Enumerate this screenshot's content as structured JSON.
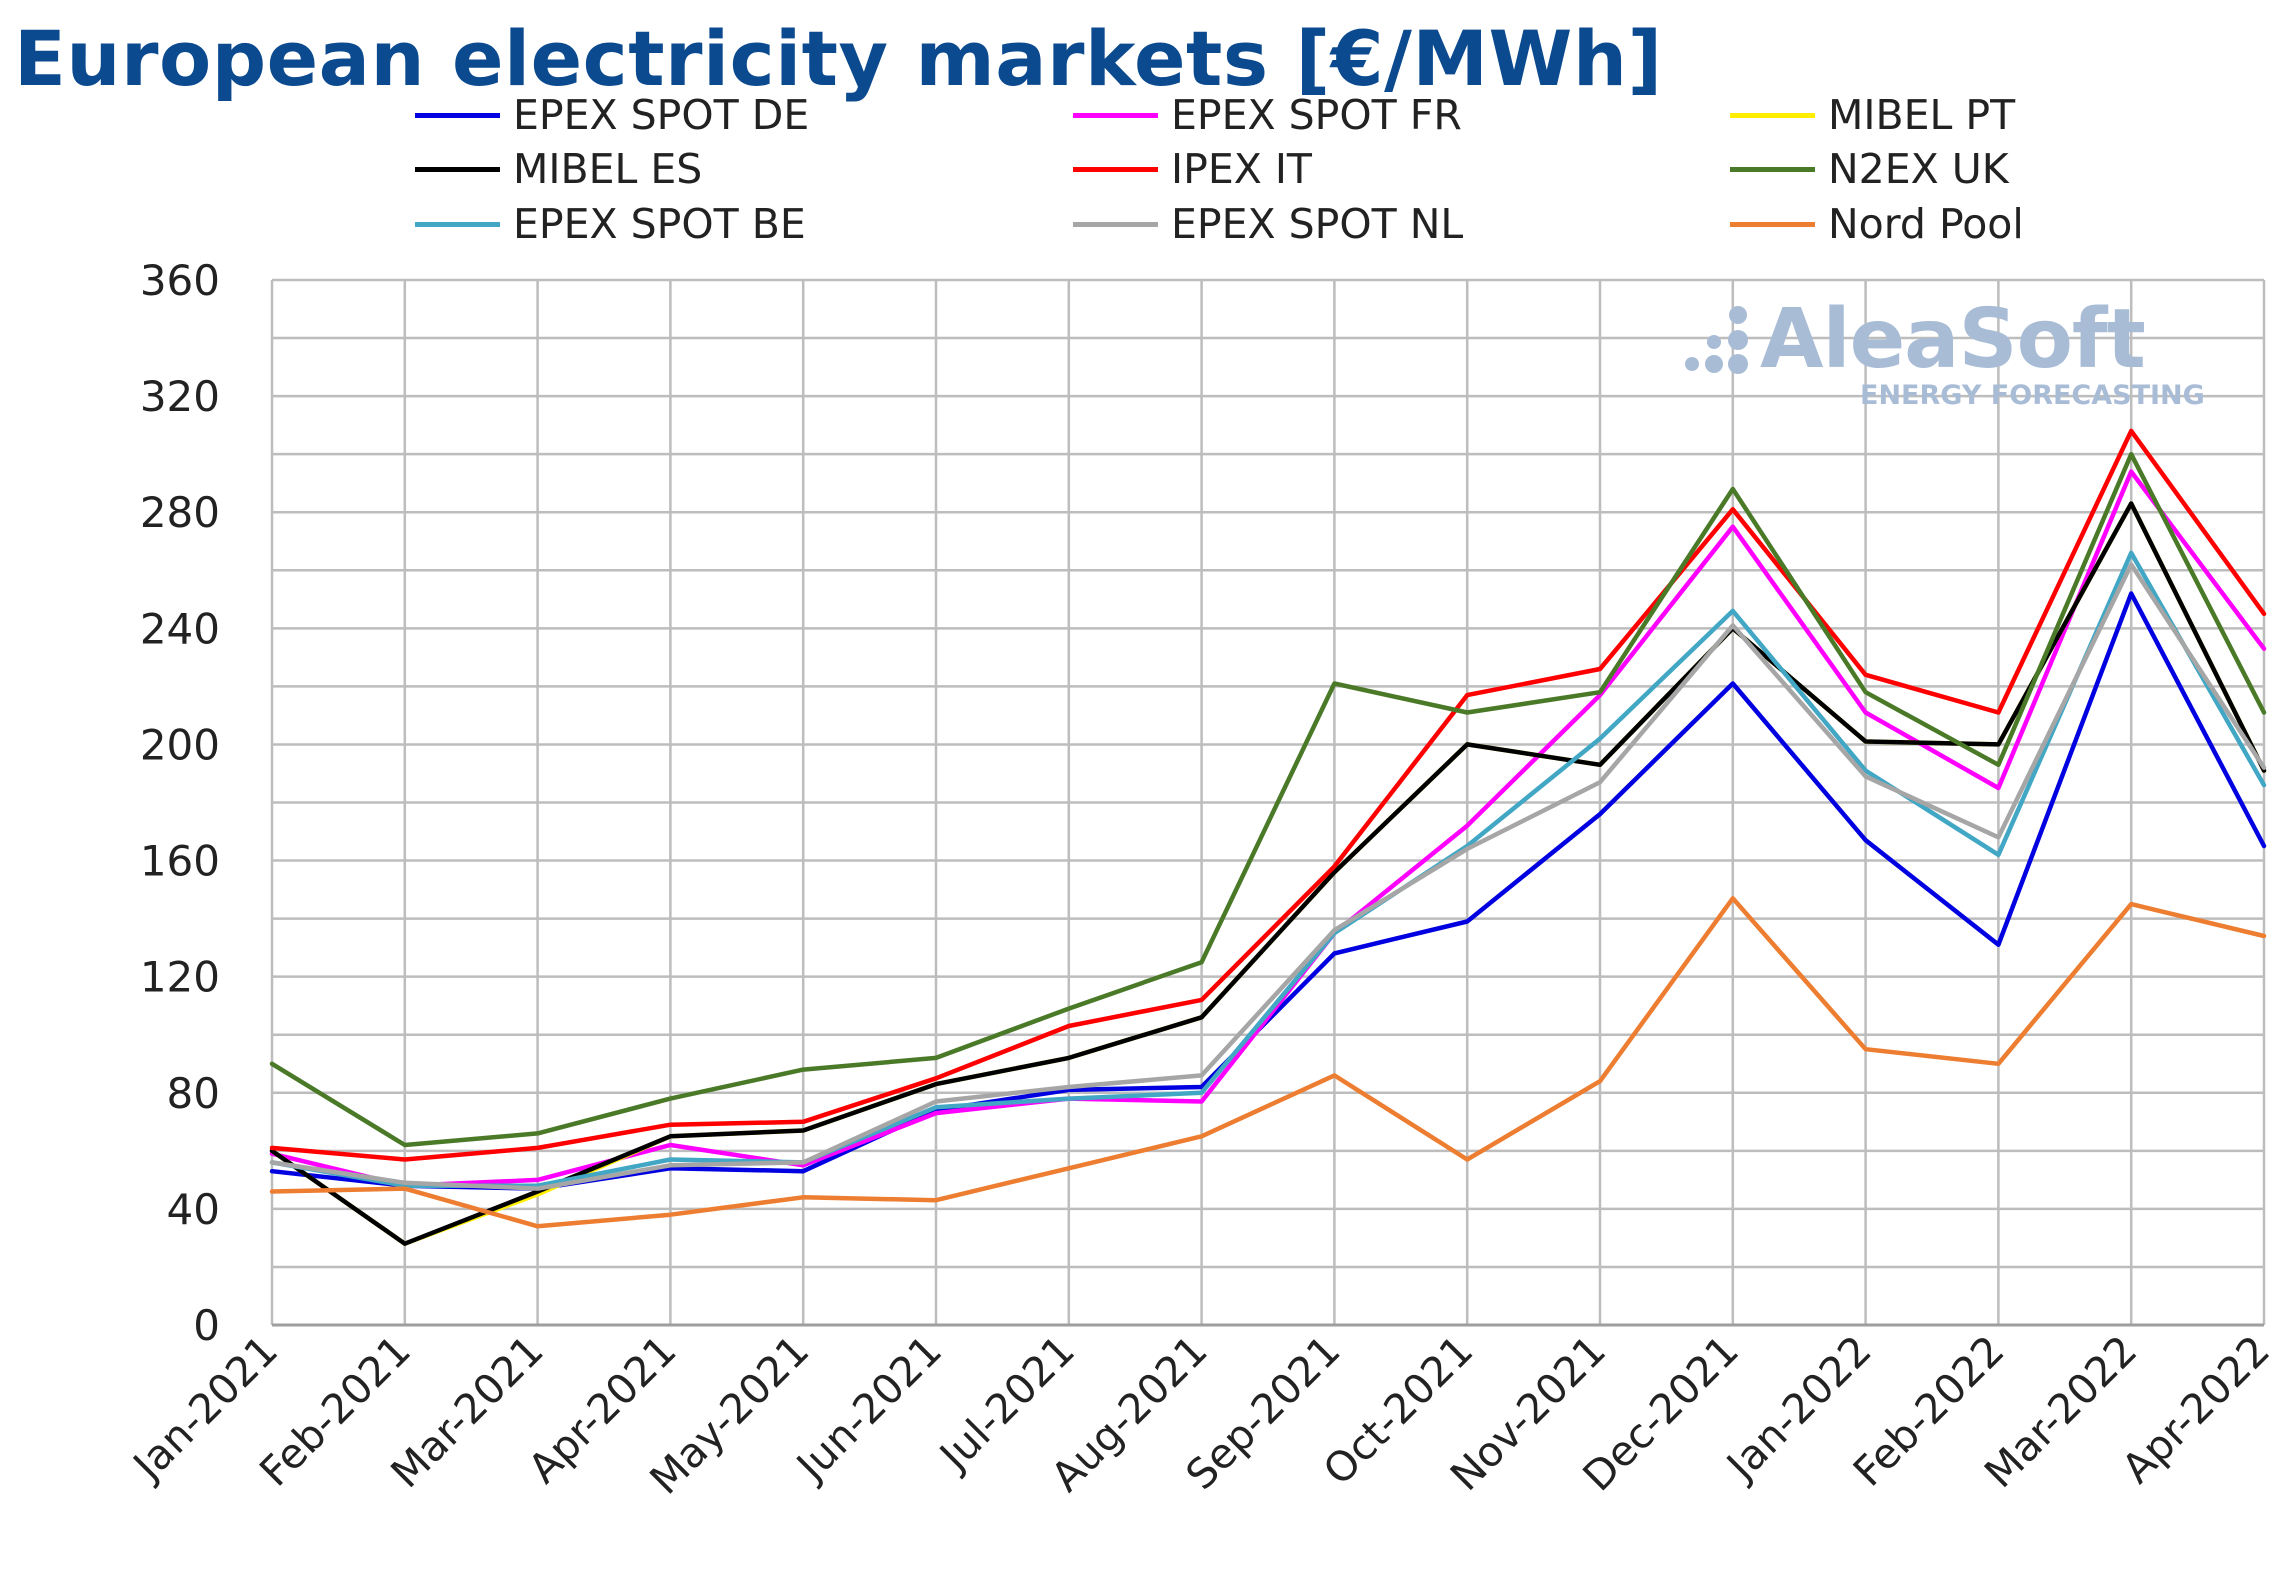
{
  "colors": {
    "EPEX SPOT DE": "#0000e0",
    "EPEX SPOT FR": "#ff00ff",
    "MIBEL PT": "#ffee00",
    "MIBEL ES": "#000000",
    "IPEX IT": "#ff0000",
    "N2EX UK": "#4a7a28",
    "EPEX SPOT BE": "#41a7c4",
    "EPEX SPOT NL": "#a6a6a6",
    "Nord Pool": "#ed7d31"
  },
  "logo": {
    "name": "AleaSoft",
    "tagline": "ENERGY FORECASTING"
  },
  "chart_data": {
    "type": "line",
    "title": "European electricity markets [€/MWh]",
    "xlabel": "",
    "ylabel": "",
    "ylim": [
      0,
      360
    ],
    "yticks": [
      0,
      40,
      80,
      120,
      160,
      200,
      240,
      280,
      320,
      360
    ],
    "grid": true,
    "legend_position": "top",
    "categories": [
      "Jan-2021",
      "Feb-2021",
      "Mar-2021",
      "Apr-2021",
      "May-2021",
      "Jun-2021",
      "Jul-2021",
      "Aug-2021",
      "Sep-2021",
      "Oct-2021",
      "Nov-2021",
      "Dec-2021",
      "Jan-2022",
      "Feb-2022",
      "Mar-2022",
      "Apr-2022"
    ],
    "series": [
      {
        "name": "EPEX SPOT DE",
        "values": [
          53,
          48,
          47,
          54,
          53,
          74,
          81,
          82,
          128,
          139,
          176,
          221,
          167,
          131,
          252,
          165
        ]
      },
      {
        "name": "EPEX SPOT FR",
        "values": [
          59,
          48,
          50,
          62,
          55,
          73,
          78,
          77,
          135,
          172,
          217,
          275,
          211,
          185,
          294,
          233
        ]
      },
      {
        "name": "MIBEL PT",
        "values": [
          60,
          28,
          45,
          65,
          67,
          83,
          92,
          106,
          156,
          200,
          193,
          240,
          201,
          200,
          283,
          191
        ]
      },
      {
        "name": "MIBEL ES",
        "values": [
          60,
          28,
          46,
          65,
          67,
          83,
          92,
          106,
          156,
          200,
          193,
          240,
          201,
          200,
          283,
          191
        ]
      },
      {
        "name": "IPEX IT",
        "values": [
          61,
          57,
          61,
          69,
          70,
          85,
          103,
          112,
          158,
          217,
          226,
          281,
          224,
          211,
          308,
          245
        ]
      },
      {
        "name": "N2EX UK",
        "values": [
          90,
          62,
          66,
          78,
          88,
          92,
          109,
          125,
          221,
          211,
          218,
          288,
          218,
          193,
          300,
          211
        ]
      },
      {
        "name": "EPEX SPOT BE",
        "values": [
          56,
          48,
          48,
          57,
          56,
          75,
          78,
          80,
          135,
          165,
          202,
          246,
          191,
          162,
          266,
          186
        ]
      },
      {
        "name": "EPEX SPOT NL",
        "values": [
          56,
          49,
          47,
          55,
          56,
          77,
          82,
          86,
          136,
          164,
          187,
          241,
          189,
          168,
          262,
          192
        ]
      },
      {
        "name": "Nord Pool",
        "values": [
          46,
          47,
          34,
          38,
          44,
          43,
          54,
          65,
          86,
          57,
          84,
          147,
          95,
          90,
          145,
          134
        ]
      }
    ]
  }
}
